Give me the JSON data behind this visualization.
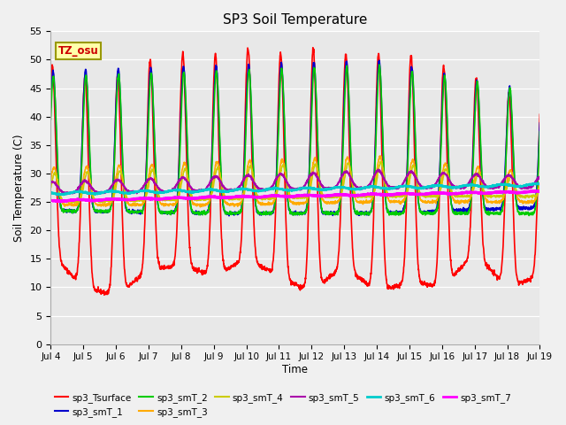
{
  "title": "SP3 Soil Temperature",
  "xlabel": "Time",
  "ylabel": "Soil Temperature (C)",
  "ylim": [
    0,
    55
  ],
  "tz_label": "TZ_osu",
  "fig_facecolor": "#f0f0f0",
  "ax_facecolor": "#e8e8e8",
  "line_colors": {
    "sp3_Tsurface": "#ff0000",
    "sp3_smT_1": "#0000cc",
    "sp3_smT_2": "#00cc00",
    "sp3_smT_3": "#ffaa00",
    "sp3_smT_4": "#cccc00",
    "sp3_smT_5": "#aa00aa",
    "sp3_smT_6": "#00cccc",
    "sp3_smT_7": "#ff00ff"
  },
  "line_widths": {
    "sp3_Tsurface": 1.2,
    "sp3_smT_1": 1.2,
    "sp3_smT_2": 1.2,
    "sp3_smT_3": 1.2,
    "sp3_smT_4": 1.2,
    "sp3_smT_5": 1.5,
    "sp3_smT_6": 1.8,
    "sp3_smT_7": 2.2
  },
  "xtick_labels": [
    "Jul 4",
    "Jul 5",
    "Jul 6",
    "Jul 7",
    "Jul 8",
    "Jul 9",
    "Jul 10",
    "Jul 11",
    "Jul 12",
    "Jul 13",
    "Jul 14",
    "Jul 15",
    "Jul 16",
    "Jul 17",
    "Jul 18",
    "Jul 19"
  ],
  "ytick_values": [
    0,
    5,
    10,
    15,
    20,
    25,
    30,
    35,
    40,
    45,
    50,
    55
  ],
  "legend_order": [
    "sp3_Tsurface",
    "sp3_smT_1",
    "sp3_smT_2",
    "sp3_smT_3",
    "sp3_smT_4",
    "sp3_smT_5",
    "sp3_smT_6",
    "sp3_smT_7"
  ]
}
